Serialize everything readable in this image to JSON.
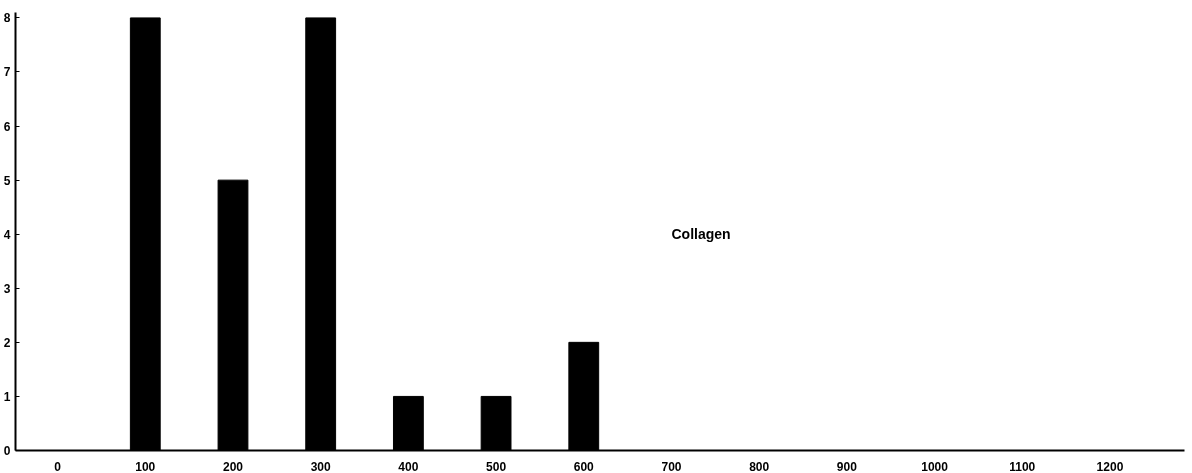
{
  "chart_data": {
    "type": "bar",
    "categories": [
      "0",
      "100",
      "200",
      "300",
      "400",
      "500",
      "600",
      "700",
      "800",
      "900",
      "1000",
      "1100",
      "1200"
    ],
    "values": [
      0,
      8,
      5,
      8,
      1,
      1,
      2,
      0,
      0,
      0,
      0,
      0,
      0
    ],
    "color": "#000000",
    "ylim": [
      0,
      8.1
    ],
    "yticks": [
      0,
      1,
      2,
      3,
      4,
      5,
      6,
      7,
      8
    ],
    "grid": false,
    "annotations": [
      "Collagen"
    ]
  }
}
